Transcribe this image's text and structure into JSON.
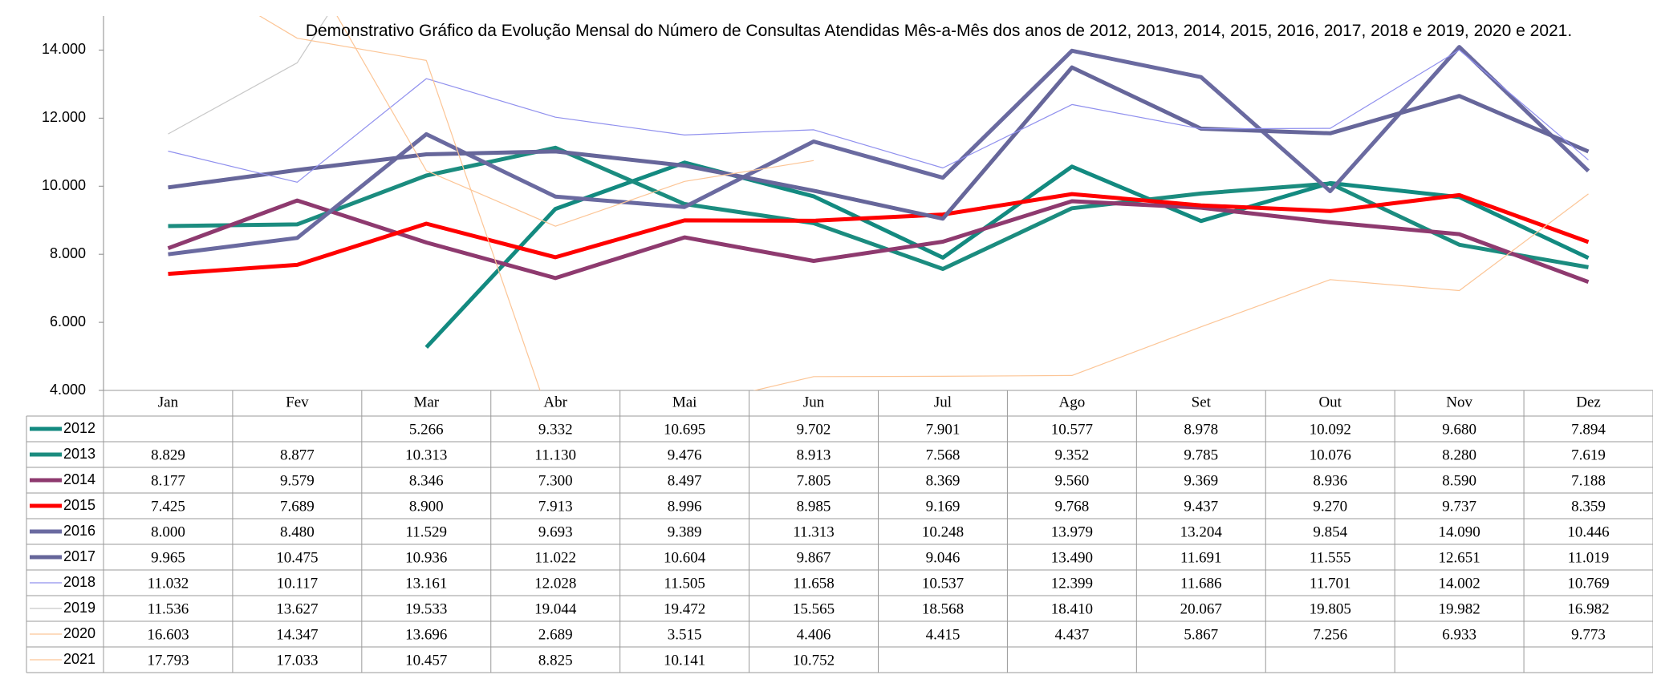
{
  "chart_data": {
    "type": "line",
    "title": "Demonstrativo Gráfico da Evolução Mensal do Número de Consultas Atendidas Mês-a-Mês dos anos de  2012, 2013, 2014, 2015, 2016, 2017, 2018 e 2019, 2020 e 2021.",
    "categories": [
      "Jan",
      "Fev",
      "Mar",
      "Abr",
      "Mai",
      "Jun",
      "Jul",
      "Ago",
      "Set",
      "Out",
      "Nov",
      "Dez"
    ],
    "ylim": [
      4000,
      15000
    ],
    "yticks": [
      {
        "value": 4000,
        "label": "4.000"
      },
      {
        "value": 6000,
        "label": "6.000"
      },
      {
        "value": 8000,
        "label": "8.000"
      },
      {
        "value": 10000,
        "label": "10.000"
      },
      {
        "value": 12000,
        "label": "12.000"
      },
      {
        "value": 14000,
        "label": "14.000"
      }
    ],
    "series": [
      {
        "name": "2012",
        "color": "#138a80",
        "values": [
          null,
          null,
          5266,
          9332,
          10695,
          9702,
          7901,
          10577,
          8978,
          10092,
          9680,
          7894
        ],
        "value_labels": [
          null,
          null,
          "5.266",
          "9.332",
          "10.695",
          "9.702",
          "7.901",
          "10.577",
          "8.978",
          "10.092",
          "9.680",
          "7.894"
        ]
      },
      {
        "name": "2013",
        "color": "#1b8c7f",
        "values": [
          8829,
          8877,
          10313,
          11130,
          9476,
          8913,
          7568,
          9352,
          9785,
          10076,
          8280,
          7619
        ],
        "value_labels": [
          "8.829",
          "8.877",
          "10.313",
          "11.130",
          "9.476",
          "8.913",
          "7.568",
          "9.352",
          "9.785",
          "10.076",
          "8.280",
          "7.619"
        ]
      },
      {
        "name": "2014",
        "color": "#8e3a6f",
        "values": [
          8177,
          9579,
          8346,
          7300,
          8497,
          7805,
          8369,
          9560,
          9369,
          8936,
          8590,
          7188
        ],
        "value_labels": [
          "8.177",
          "9.579",
          "8.346",
          "7.300",
          "8.497",
          "7.805",
          "8.369",
          "9.560",
          "9.369",
          "8.936",
          "8.590",
          "7.188"
        ]
      },
      {
        "name": "2015",
        "color": "#ff0000",
        "values": [
          7425,
          7689,
          8900,
          7913,
          8996,
          8985,
          9169,
          9768,
          9437,
          9270,
          9737,
          8359
        ],
        "value_labels": [
          "7.425",
          "7.689",
          "8.900",
          "7.913",
          "8.996",
          "8.985",
          "9.169",
          "9.768",
          "9.437",
          "9.270",
          "9.737",
          "8.359"
        ]
      },
      {
        "name": "2016",
        "color": "#6a6aa0",
        "values": [
          8000,
          8480,
          11529,
          9693,
          9389,
          11313,
          10248,
          13979,
          13204,
          9854,
          14090,
          10446
        ],
        "value_labels": [
          "8.000",
          "8.480",
          "11.529",
          "9.693",
          "9.389",
          "11.313",
          "10.248",
          "13.979",
          "13.204",
          "9.854",
          "14.090",
          "10.446"
        ]
      },
      {
        "name": "2017",
        "color": "#66669a",
        "values": [
          9965,
          10475,
          10936,
          11022,
          10604,
          9867,
          9046,
          13490,
          11691,
          11555,
          12651,
          11019
        ],
        "value_labels": [
          "9.965",
          "10.475",
          "10.936",
          "11.022",
          "10.604",
          "9.867",
          "9.046",
          "13.490",
          "11.691",
          "11.555",
          "12.651",
          "11.019"
        ]
      },
      {
        "name": "2018",
        "color": "#9090ee",
        "values": [
          11032,
          10117,
          13161,
          12028,
          11505,
          11658,
          10537,
          12399,
          11686,
          11701,
          14002,
          10769
        ],
        "value_labels": [
          "11.032",
          "10.117",
          "13.161",
          "12.028",
          "11.505",
          "11.658",
          "10.537",
          "12.399",
          "11.686",
          "11.701",
          "14.002",
          "10.769"
        ]
      },
      {
        "name": "2019",
        "color": "#c8c8c8",
        "values": [
          11536,
          13627,
          19533,
          19044,
          19472,
          15565,
          18568,
          18410,
          20067,
          19805,
          19982,
          16982
        ],
        "value_labels": [
          "11.536",
          "13.627",
          "19.533",
          "19.044",
          "19.472",
          "15.565",
          "18.568",
          "18.410",
          "20.067",
          "19.805",
          "19.982",
          "16.982"
        ]
      },
      {
        "name": "2020",
        "color": "#fcc596",
        "values": [
          16603,
          14347,
          13696,
          2689,
          3515,
          4406,
          4415,
          4437,
          5867,
          7256,
          6933,
          9773
        ],
        "value_labels": [
          "16.603",
          "14.347",
          "13.696",
          "2.689",
          "3.515",
          "4.406",
          "4.415",
          "4.437",
          "5.867",
          "7.256",
          "6.933",
          "9.773"
        ]
      },
      {
        "name": "2021",
        "color": "#fcc596",
        "values": [
          17793,
          17033,
          10457,
          8825,
          10141,
          10752,
          null,
          null,
          null,
          null,
          null,
          null
        ],
        "value_labels": [
          "17.793",
          "17.033",
          "10.457",
          "8.825",
          "10.141",
          "10.752",
          null,
          null,
          null,
          null,
          null,
          null
        ]
      }
    ]
  }
}
